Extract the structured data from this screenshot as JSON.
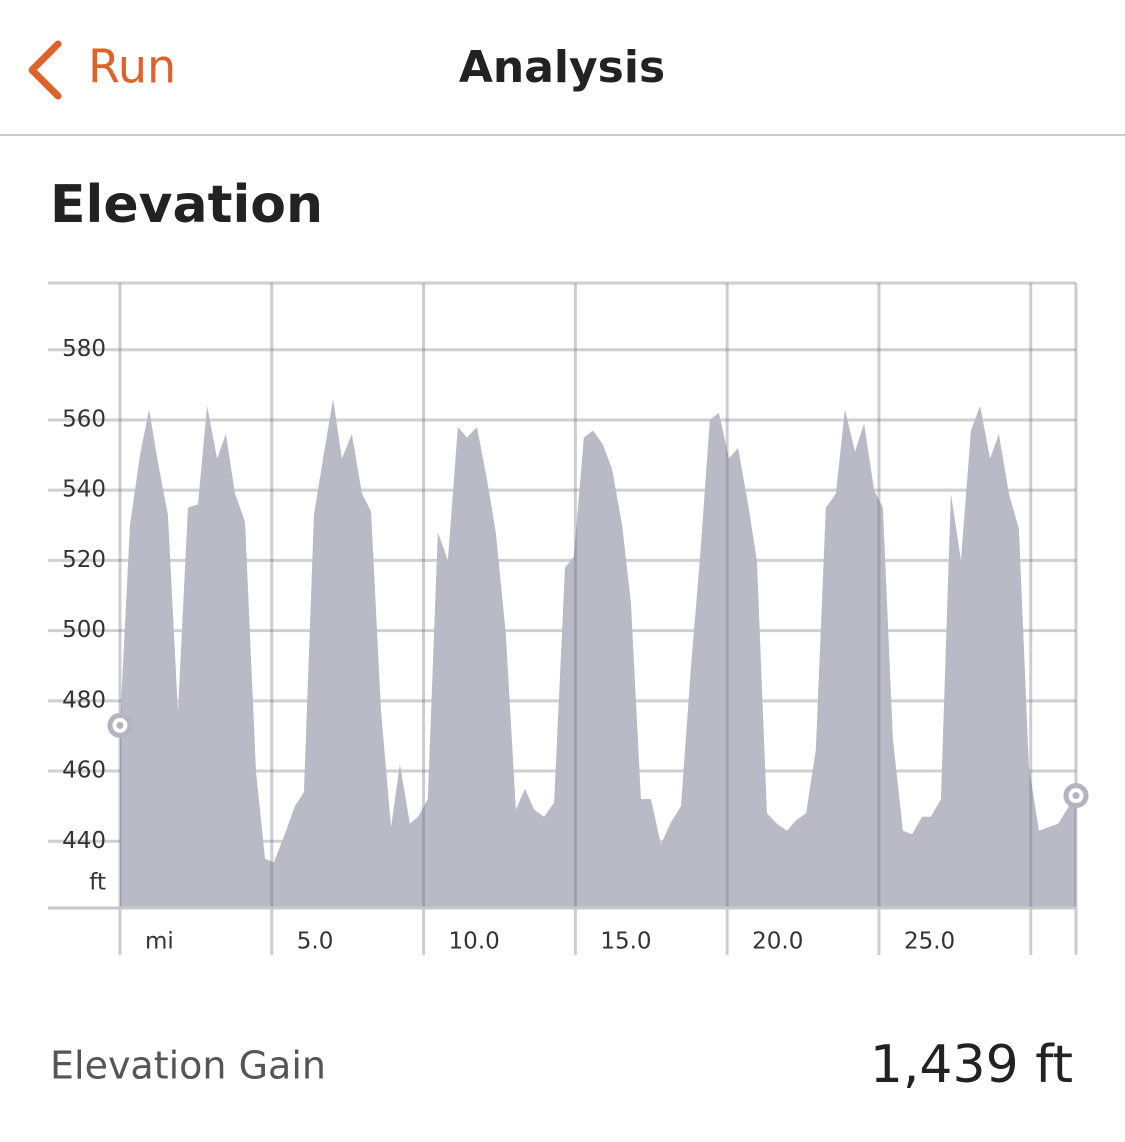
{
  "header": {
    "back": "Run",
    "title": "Analysis"
  },
  "chart_data": {
    "type": "area",
    "title": "Elevation",
    "x": [
      0,
      0.33,
      0.66,
      0.96,
      1.25,
      1.58,
      1.91,
      2.24,
      2.57,
      2.87,
      3.2,
      3.49,
      3.79,
      4.12,
      4.48,
      4.78,
      5.07,
      5.43,
      5.76,
      6.06,
      6.39,
      6.69,
      7.02,
      7.31,
      7.64,
      7.97,
      8.27,
      8.6,
      8.93,
      9.22,
      9.55,
      9.82,
      10.14,
      10.47,
      10.8,
      11.13,
      11.43,
      11.76,
      12.09,
      12.38,
      12.71,
      13.04,
      13.34,
      13.64,
      13.97,
      14.3,
      14.66,
      14.95,
      15.28,
      15.58,
      15.91,
      16.21,
      16.54,
      16.83,
      17.16,
      17.49,
      17.82,
      18.12,
      18.48,
      18.81,
      19.1,
      19.43,
      19.73,
      20.06,
      20.36,
      20.69,
      20.98,
      21.31,
      21.64,
      21.97,
      22.27,
      22.6,
      22.92,
      23.25,
      23.58,
      23.88,
      24.21,
      24.51,
      24.84,
      25.13,
      25.46,
      25.79,
      26.09,
      26.42,
      26.71,
      27.04,
      27.37,
      27.7,
      28.03,
      28.33,
      28.66,
      28.95,
      29.28,
      29.61,
      29.94,
      30.27,
      30.57,
      30.9,
      31.19,
      31.49
    ],
    "values": [
      473,
      530,
      550,
      563,
      548,
      533,
      477,
      535,
      536,
      564,
      549,
      556,
      539,
      531,
      460,
      435,
      434,
      442,
      450,
      454,
      533,
      549,
      566,
      549,
      556,
      539,
      534,
      477,
      444,
      462,
      445,
      447,
      452,
      528,
      520,
      558,
      555,
      558,
      543,
      528,
      499,
      449,
      455,
      449,
      447,
      451,
      518,
      521,
      555,
      557,
      553,
      546,
      530,
      508,
      452,
      452,
      439,
      445,
      450,
      490,
      520,
      560,
      562,
      549,
      552,
      536,
      520,
      448,
      445,
      443,
      446,
      448,
      466,
      535,
      539,
      563,
      551,
      559,
      540,
      535,
      469,
      443,
      442,
      447,
      447,
      452,
      539,
      520,
      557,
      564,
      549,
      556,
      539,
      529,
      461,
      443,
      444,
      445,
      449,
      453
    ],
    "color": "#babac6",
    "xlim": [
      -2.37,
      31.49
    ],
    "ylim": [
      421,
      599
    ],
    "yticks": [
      440,
      460,
      480,
      500,
      520,
      540,
      560,
      580
    ],
    "ylabel": "ft",
    "xticks": [
      {
        "value": 0,
        "label": "mi"
      },
      {
        "value": 5,
        "label": "5.0"
      },
      {
        "value": 10,
        "label": "10.0"
      },
      {
        "value": 15,
        "label": "15.0"
      },
      {
        "value": 20,
        "label": "20.0"
      },
      {
        "value": 25,
        "label": "25.0"
      },
      {
        "value": 30,
        "label": null
      }
    ],
    "grid": true
  },
  "summary": {
    "label": "Elevation Gain",
    "value": "1,439 ft"
  }
}
